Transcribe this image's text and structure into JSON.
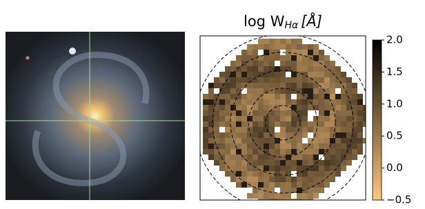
{
  "chart_data": {
    "type": "image-map",
    "title": "log W",
    "title_subscript": "Hα",
    "title_unit": "[Å]",
    "clim": [
      -0.5,
      2.0
    ],
    "cticks": [
      {
        "value": -0.5,
        "label": "−0.5"
      },
      {
        "value": 0,
        "label": "0.0"
      },
      0.5,
      {
        "value": 1,
        "label": "1.0"
      },
      1.5,
      {
        "value": 2,
        "label": "2.0"
      }
    ],
    "colormap": [
      "#ffc880",
      "#000000"
    ]
  }
}
